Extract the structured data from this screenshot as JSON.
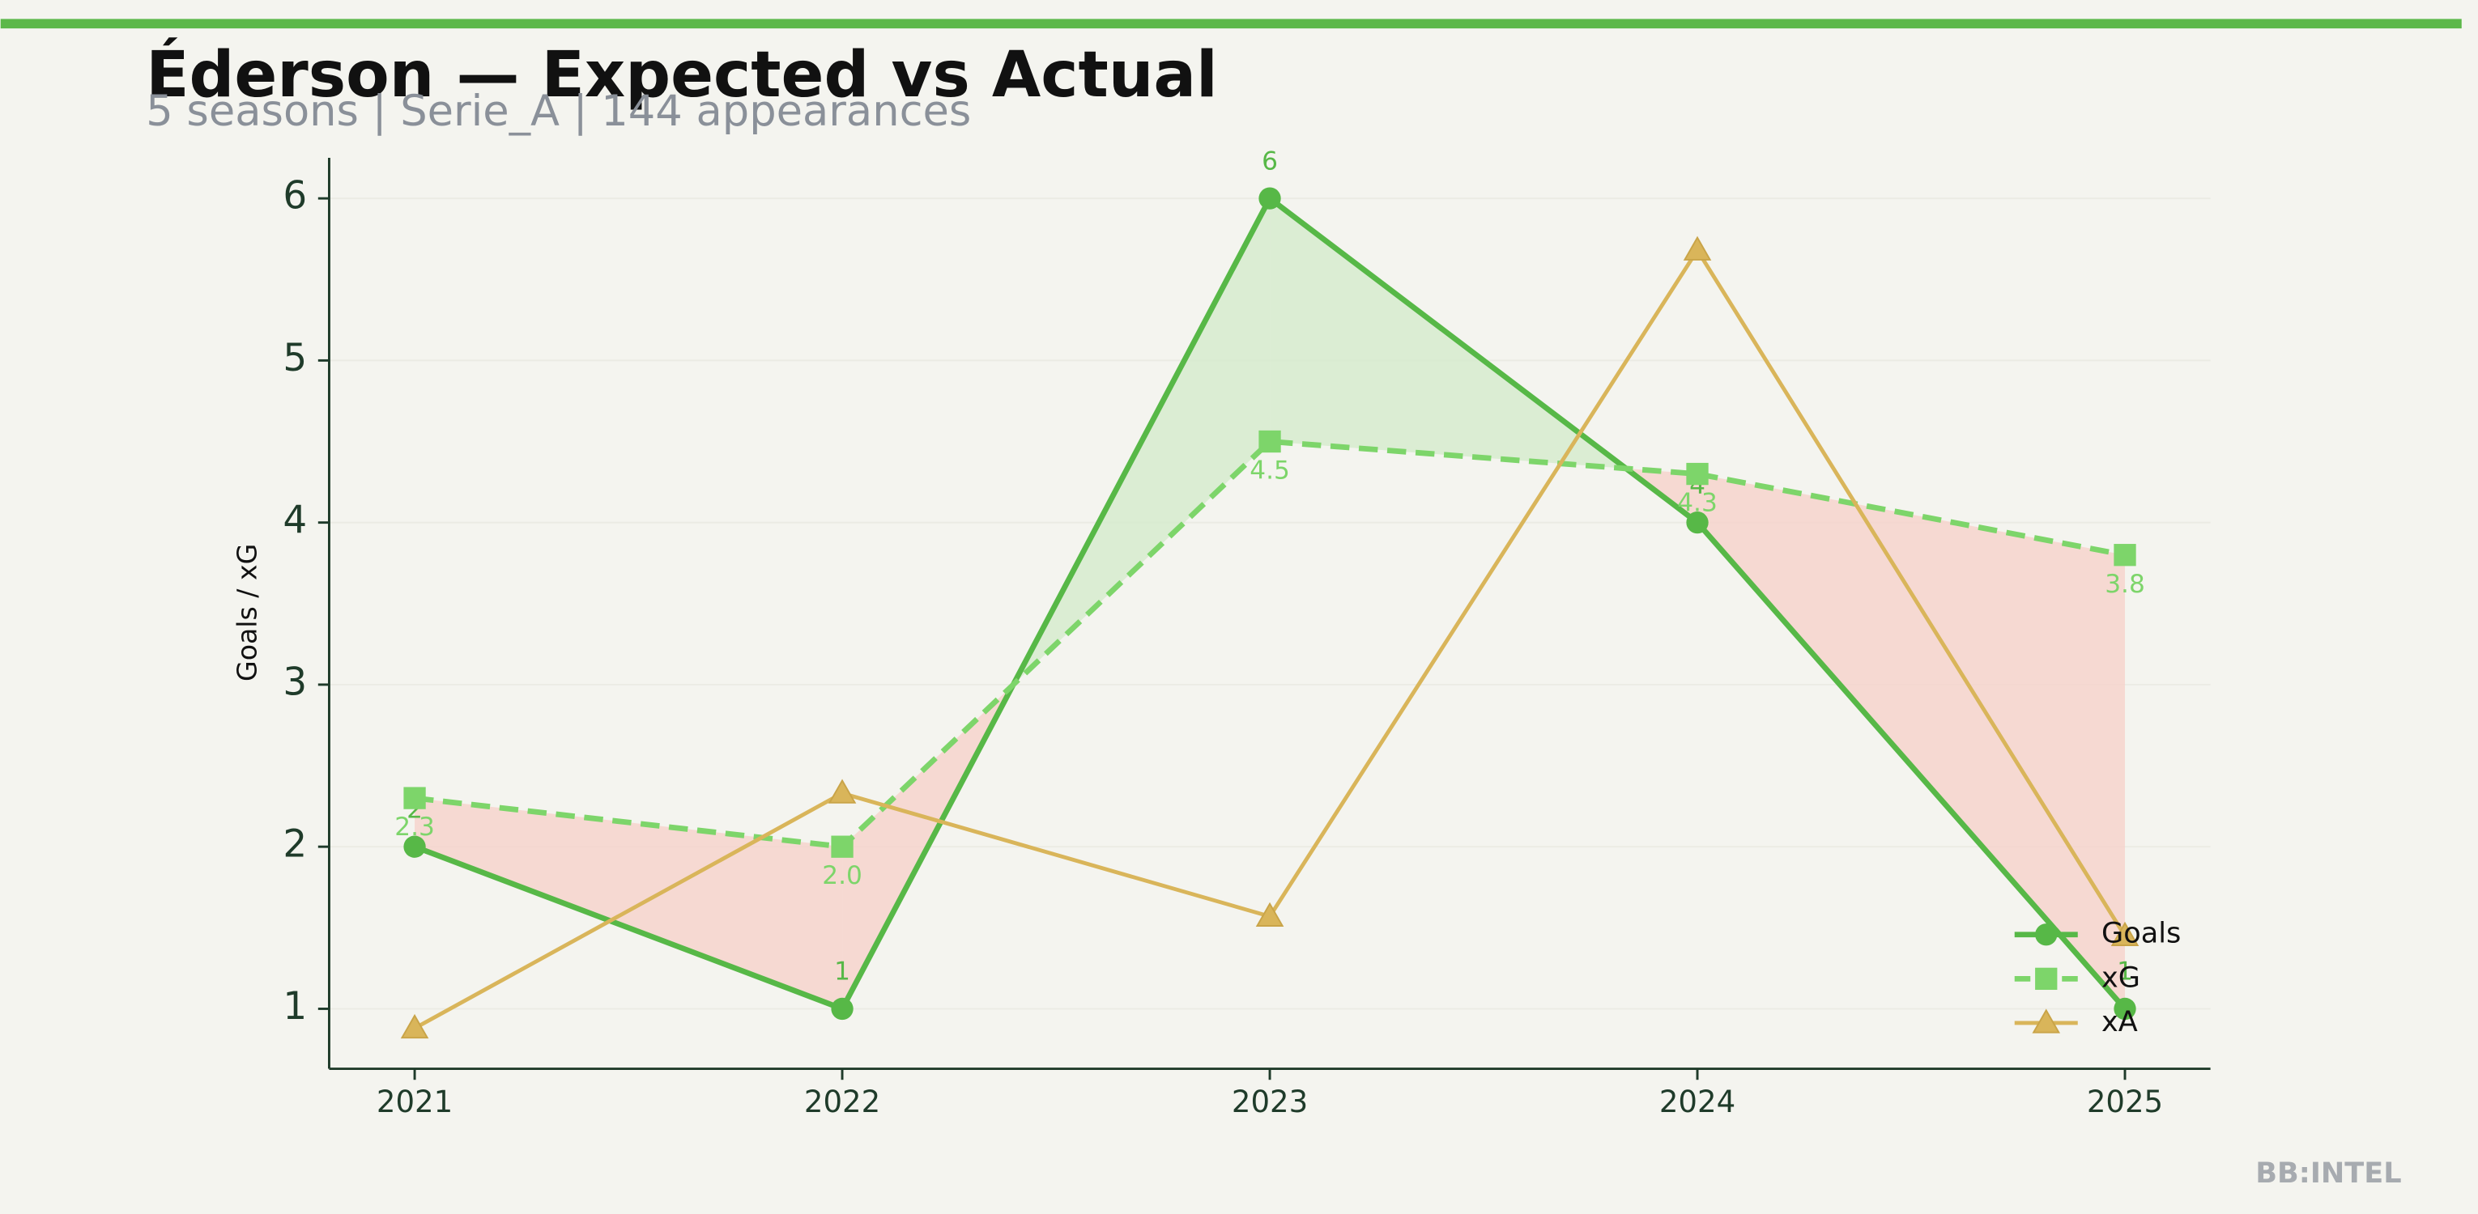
{
  "chart_data": {
    "type": "line",
    "title": "Éderson — Expected vs Actual",
    "subtitle": "5 seasons | Serie_A | 144 appearances",
    "y_label": "Goals / xG",
    "watermark": "BB:INTEL",
    "x": [
      2021,
      2022,
      2023,
      2024,
      2025
    ],
    "xlim": [
      2020.8,
      2025.2
    ],
    "xticks": [
      2021,
      2022,
      2023,
      2024,
      2025
    ],
    "ylim": [
      0.63,
      6.25
    ],
    "yticks": [
      1,
      2,
      3,
      4,
      5,
      6
    ],
    "grid": true,
    "legend": "lower right",
    "series": [
      {
        "name": "Goals",
        "color": "#57b847",
        "values": [
          2,
          1,
          6,
          4,
          1
        ]
      },
      {
        "name": "xG",
        "color": "#7dd56a",
        "values": [
          2.3,
          2.0,
          4.5,
          4.3,
          3.8
        ],
        "value_labels": [
          "2.3",
          "2.0",
          "4.5",
          "4.3",
          "3.8"
        ]
      },
      {
        "name": "xA",
        "color": "#d9b55a",
        "values": [
          0.88,
          2.33,
          1.57,
          5.68,
          1.45
        ]
      }
    ]
  }
}
